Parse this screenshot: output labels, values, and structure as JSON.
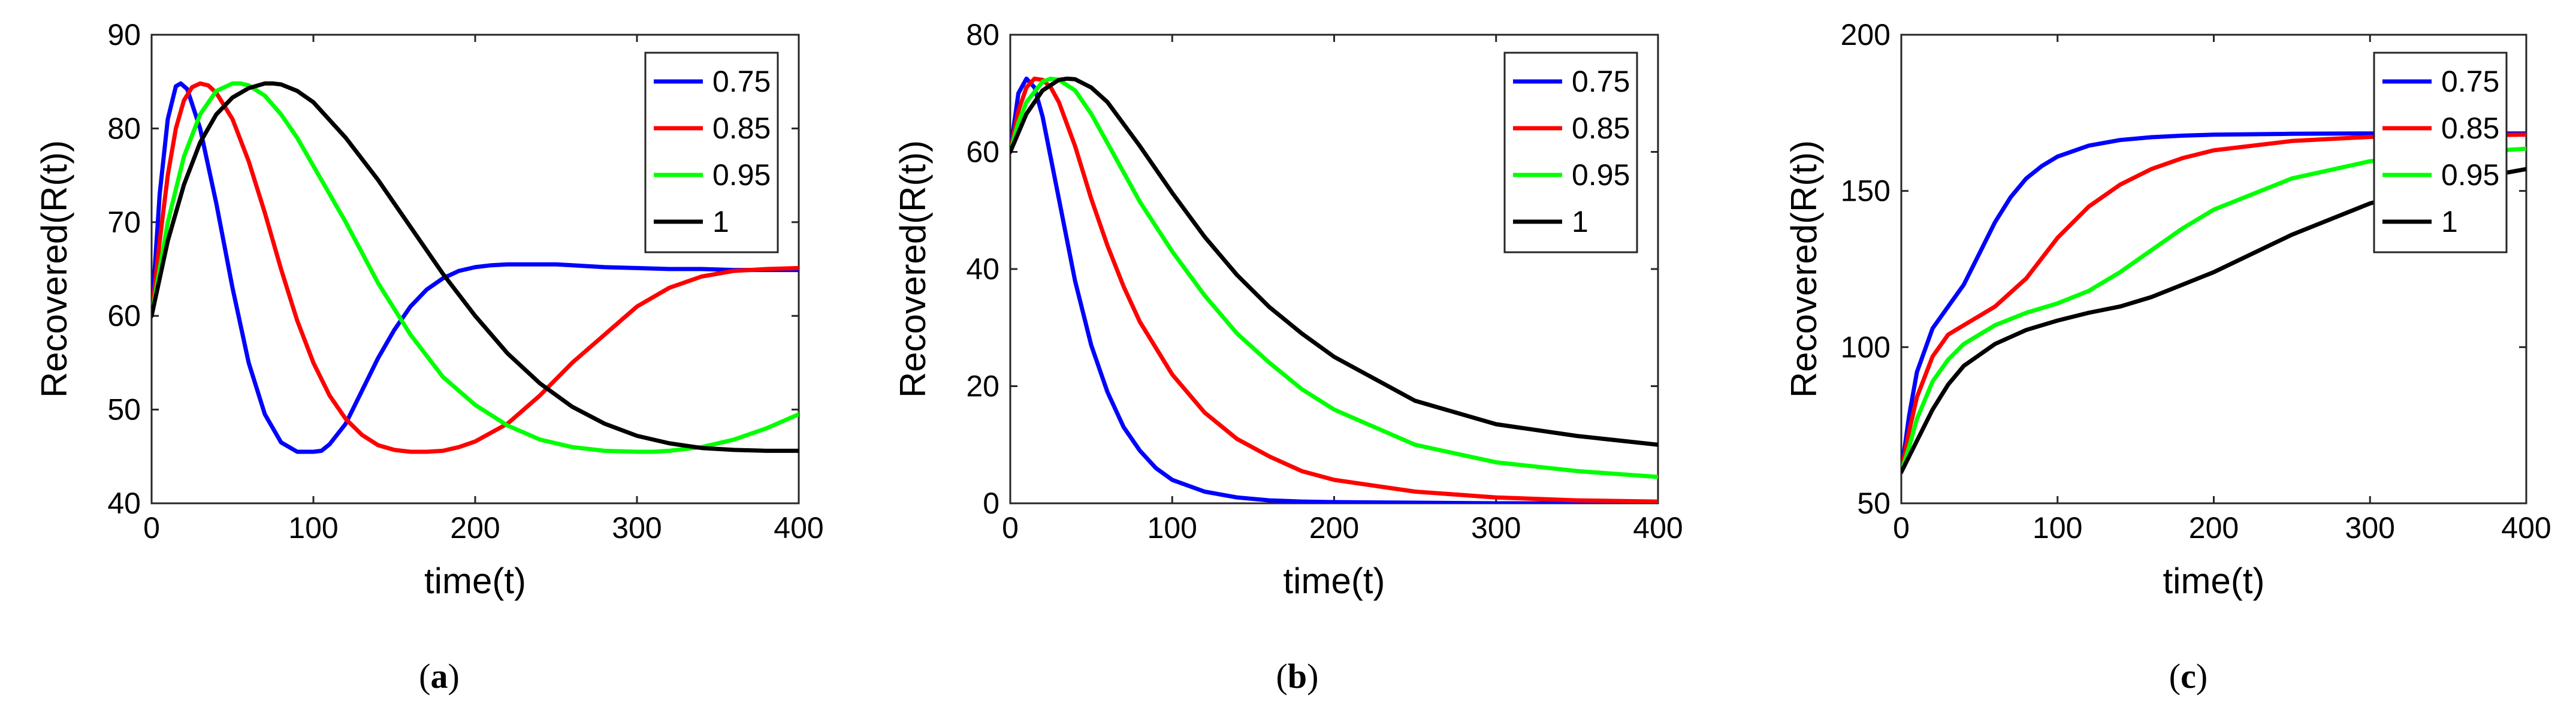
{
  "legend_labels": [
    "0.75",
    "0.85",
    "0.95",
    "1"
  ],
  "series_colors": [
    "#0000ff",
    "#ff0000",
    "#00ff00",
    "#000000"
  ],
  "chart_data": [
    {
      "id": "a",
      "type": "line",
      "caption": "a",
      "xlabel": "time(t)",
      "ylabel": "Recovered(R(t))",
      "xlim": [
        0,
        400
      ],
      "ylim": [
        40,
        90
      ],
      "xticks": [
        0,
        100,
        200,
        300,
        400
      ],
      "yticks": [
        40,
        50,
        60,
        70,
        80,
        90
      ],
      "legend_position": "top-right",
      "series": [
        {
          "name": "0.75",
          "x": [
            0,
            5,
            10,
            15,
            18,
            22,
            30,
            40,
            50,
            60,
            70,
            80,
            90,
            100,
            105,
            110,
            120,
            130,
            140,
            150,
            160,
            170,
            180,
            190,
            200,
            210,
            220,
            230,
            240,
            250,
            260,
            280,
            300,
            320,
            340,
            360,
            380,
            400
          ],
          "y": [
            60,
            73,
            81,
            84.5,
            84.8,
            84.2,
            80,
            72,
            63,
            55,
            49.5,
            46.5,
            45.5,
            45.5,
            45.6,
            46.3,
            48.5,
            52,
            55.5,
            58.5,
            61,
            62.8,
            64,
            64.8,
            65.2,
            65.4,
            65.5,
            65.5,
            65.5,
            65.5,
            65.4,
            65.2,
            65.1,
            65,
            65,
            64.9,
            64.9,
            64.9
          ]
        },
        {
          "name": "0.85",
          "x": [
            0,
            5,
            10,
            15,
            20,
            25,
            30,
            35,
            40,
            50,
            60,
            70,
            80,
            90,
            100,
            110,
            120,
            130,
            140,
            150,
            160,
            170,
            180,
            190,
            200,
            220,
            240,
            260,
            280,
            300,
            320,
            340,
            360,
            380,
            400
          ],
          "y": [
            60,
            68,
            75,
            80,
            83,
            84.4,
            84.8,
            84.6,
            83.8,
            81,
            76.5,
            71,
            65,
            59.5,
            55,
            51.5,
            49,
            47.3,
            46.2,
            45.7,
            45.5,
            45.5,
            45.6,
            46,
            46.6,
            48.5,
            51.5,
            55,
            58,
            61,
            63,
            64.2,
            64.8,
            65,
            65.1
          ]
        },
        {
          "name": "0.95",
          "x": [
            0,
            10,
            20,
            30,
            40,
            50,
            55,
            60,
            70,
            80,
            90,
            100,
            120,
            140,
            160,
            180,
            200,
            220,
            240,
            260,
            280,
            300,
            310,
            320,
            340,
            360,
            380,
            400
          ],
          "y": [
            60,
            70,
            77,
            81.5,
            84,
            84.8,
            84.8,
            84.6,
            83.5,
            81.5,
            79,
            76,
            70,
            63.5,
            58,
            53.5,
            50.5,
            48.3,
            46.8,
            46,
            45.6,
            45.5,
            45.5,
            45.6,
            46,
            46.8,
            48,
            49.5
          ]
        },
        {
          "name": "1",
          "x": [
            0,
            10,
            20,
            30,
            40,
            50,
            60,
            70,
            75,
            80,
            90,
            100,
            120,
            140,
            160,
            180,
            200,
            220,
            240,
            260,
            280,
            300,
            320,
            340,
            360,
            380,
            400
          ],
          "y": [
            60,
            68,
            74,
            78.5,
            81.5,
            83.3,
            84.3,
            84.8,
            84.8,
            84.7,
            84,
            82.8,
            79,
            74.5,
            69.5,
            64.5,
            60,
            56,
            52.8,
            50.3,
            48.5,
            47.2,
            46.4,
            45.9,
            45.7,
            45.6,
            45.6
          ]
        }
      ]
    },
    {
      "id": "b",
      "type": "line",
      "caption": "b",
      "xlabel": "time(t)",
      "ylabel": "Recovered(R(t))",
      "xlim": [
        0,
        400
      ],
      "ylim": [
        0,
        80
      ],
      "xticks": [
        0,
        100,
        200,
        300,
        400
      ],
      "yticks": [
        0,
        20,
        40,
        60,
        80
      ],
      "legend_position": "top-right",
      "series": [
        {
          "name": "0.75",
          "x": [
            0,
            5,
            10,
            15,
            20,
            30,
            40,
            50,
            60,
            70,
            80,
            90,
            100,
            120,
            140,
            160,
            180,
            200,
            250,
            300,
            350,
            400
          ],
          "y": [
            60,
            70,
            72.5,
            71,
            66,
            52,
            38,
            27,
            19,
            13,
            9,
            6,
            4,
            2,
            1,
            0.5,
            0.3,
            0.2,
            0.1,
            0,
            0,
            0
          ]
        },
        {
          "name": "0.85",
          "x": [
            0,
            5,
            10,
            15,
            20,
            25,
            30,
            40,
            50,
            60,
            70,
            80,
            100,
            120,
            140,
            160,
            180,
            200,
            250,
            300,
            350,
            400
          ],
          "y": [
            60,
            67,
            71,
            72.5,
            72.3,
            71,
            68.5,
            61,
            52,
            44,
            37,
            31,
            22,
            15.5,
            11,
            8,
            5.5,
            4,
            2,
            1,
            0.5,
            0.3
          ]
        },
        {
          "name": "0.95",
          "x": [
            0,
            5,
            10,
            20,
            25,
            30,
            40,
            50,
            60,
            80,
            100,
            120,
            140,
            160,
            180,
            200,
            250,
            300,
            350,
            400
          ],
          "y": [
            60,
            65,
            68.5,
            72,
            72.5,
            72.3,
            70.5,
            66.5,
            61.5,
            51.5,
            43,
            35.5,
            29,
            24,
            19.5,
            16,
            10,
            7,
            5.5,
            4.5
          ]
        },
        {
          "name": "1",
          "x": [
            0,
            10,
            20,
            30,
            35,
            40,
            50,
            60,
            80,
            100,
            120,
            140,
            160,
            180,
            200,
            250,
            300,
            350,
            400
          ],
          "y": [
            60,
            66.5,
            70.5,
            72.3,
            72.5,
            72.4,
            71,
            68.5,
            61,
            53,
            45.5,
            39,
            33.5,
            29,
            25,
            17.5,
            13.5,
            11.5,
            10
          ]
        }
      ]
    },
    {
      "id": "c",
      "type": "line",
      "caption": "c",
      "xlabel": "time(t)",
      "ylabel": "Recovered(R(t))",
      "xlim": [
        0,
        400
      ],
      "ylim": [
        50,
        200
      ],
      "xticks": [
        0,
        100,
        200,
        300,
        400
      ],
      "yticks": [
        50,
        100,
        150,
        200
      ],
      "legend_position": "top-right",
      "series": [
        {
          "name": "0.75",
          "x": [
            0,
            5,
            10,
            20,
            30,
            40,
            50,
            60,
            70,
            80,
            90,
            100,
            120,
            140,
            160,
            180,
            200,
            250,
            300,
            350,
            400
          ],
          "y": [
            60,
            78,
            92,
            106,
            113,
            120,
            130,
            140,
            148,
            154,
            158,
            161,
            164.5,
            166.3,
            167.2,
            167.7,
            168,
            168.3,
            168.4,
            168.4,
            168.4
          ]
        },
        {
          "name": "0.85",
          "x": [
            0,
            5,
            10,
            20,
            30,
            40,
            50,
            60,
            80,
            100,
            120,
            140,
            160,
            180,
            200,
            250,
            300,
            350,
            400
          ],
          "y": [
            60,
            73,
            84,
            97,
            104,
            107,
            110,
            113,
            122,
            135,
            145,
            152,
            157,
            160.5,
            163,
            166,
            167.3,
            167.8,
            168
          ]
        },
        {
          "name": "0.95",
          "x": [
            0,
            5,
            10,
            20,
            30,
            40,
            60,
            80,
            100,
            120,
            140,
            160,
            180,
            200,
            250,
            300,
            350,
            400
          ],
          "y": [
            60,
            68,
            77,
            89,
            96,
            101,
            107,
            111,
            114,
            118,
            124,
            131,
            138,
            144,
            154,
            159.5,
            162,
            163.5
          ]
        },
        {
          "name": "1",
          "x": [
            0,
            10,
            20,
            30,
            40,
            60,
            80,
            100,
            120,
            140,
            160,
            180,
            200,
            250,
            300,
            350,
            400
          ],
          "y": [
            60,
            70,
            80,
            88,
            94,
            101,
            105.5,
            108.5,
            111,
            113,
            116,
            120,
            124,
            136,
            146,
            152.5,
            157
          ]
        }
      ]
    }
  ]
}
